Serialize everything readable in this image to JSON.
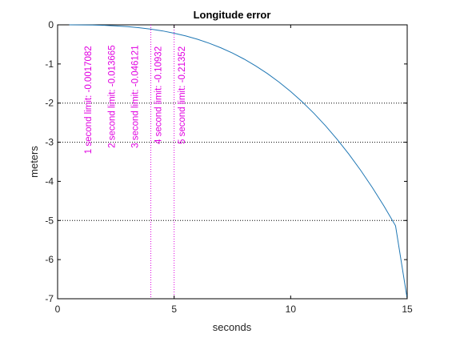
{
  "chart_data": {
    "type": "line",
    "title": "Longitude error",
    "xlabel": "seconds",
    "ylabel": "meters",
    "xlim": [
      0,
      15
    ],
    "ylim": [
      -7,
      0
    ],
    "x_ticks": [
      "0",
      "5",
      "10",
      "15"
    ],
    "y_ticks": [
      "0",
      "-1",
      "-2",
      "-3",
      "-4",
      "-5",
      "-6",
      "-7"
    ],
    "grid": "horizontal dotted lines at y = -2, -3, -5",
    "grid_lines_y": [
      -2,
      -3,
      -5
    ],
    "vertical_markers_x": [
      4,
      5
    ],
    "series": [
      {
        "color": "#1f77b4",
        "x": [
          0.5,
          1,
          1.5,
          2,
          2.5,
          3,
          3.5,
          4,
          4.5,
          5,
          5.5,
          6,
          6.5,
          7,
          7.5,
          8,
          8.5,
          9,
          9.5,
          10,
          10.5,
          11,
          11.5,
          12,
          12.5,
          13,
          13.5,
          14,
          14.5,
          15
        ],
        "y": [
          -0.001,
          -0.002,
          -0.006,
          -0.014,
          -0.027,
          -0.046,
          -0.073,
          -0.109,
          -0.155,
          -0.214,
          -0.284,
          -0.369,
          -0.469,
          -0.586,
          -0.721,
          -0.875,
          -1.05,
          -1.245,
          -1.463,
          -1.704,
          -1.971,
          -2.263,
          -2.582,
          -2.93,
          -3.307,
          -3.715,
          -4.155,
          -4.628,
          -5.136,
          -7.0
        ]
      }
    ],
    "annotations": [
      {
        "text": "1 second limit: -0.0017082",
        "x": 1.45,
        "y": -3.3,
        "color": "#e000e0"
      },
      {
        "text": "2 second limit: -0.013665",
        "x": 2.45,
        "y": -3.15,
        "color": "#e000e0"
      },
      {
        "text": "3 second limit: -0.046121",
        "x": 3.45,
        "y": -3.15,
        "color": "#e000e0"
      },
      {
        "text": "4 second limit: -0.10932",
        "x": 4.45,
        "y": -3.05,
        "color": "#e000e0"
      },
      {
        "text": "5 second limit: -0.21352",
        "x": 5.45,
        "y": -3.05,
        "color": "#e000e0"
      }
    ],
    "colors": {
      "line": "#1f77b4",
      "annotation": "#e000e0",
      "marker": "#e000e0",
      "grid": "#000000",
      "axes": "#000000"
    }
  }
}
